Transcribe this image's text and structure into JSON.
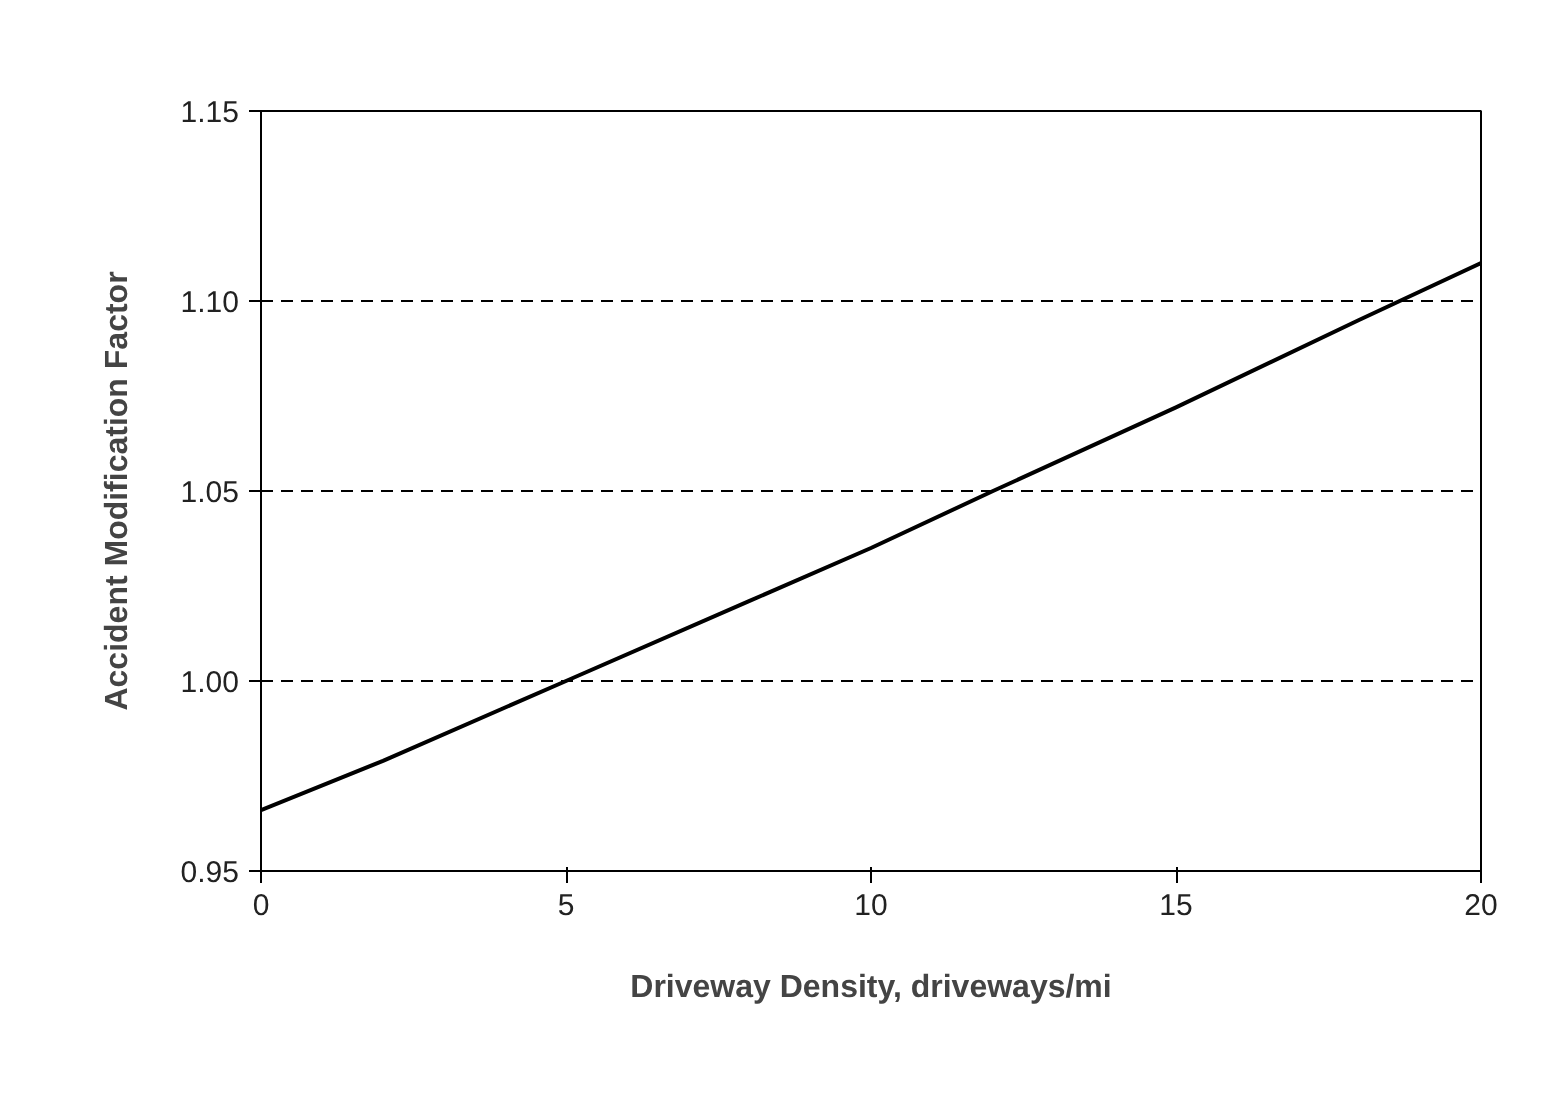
{
  "chart_data": {
    "type": "line",
    "xlabel": "Driveway Density, driveways/mi",
    "ylabel": "Accident Modification Factor",
    "x": [
      0,
      2,
      5,
      8,
      10,
      12,
      15,
      18,
      20
    ],
    "series": [
      {
        "color": "#000000",
        "values": [
          0.966,
          0.979,
          1.0,
          1.021,
          1.035,
          1.05,
          1.072,
          1.095,
          1.11
        ]
      }
    ],
    "xlim": [
      0,
      20
    ],
    "xticks": [
      0,
      5,
      10,
      15,
      20
    ],
    "ylim": [
      0.95,
      1.15
    ],
    "yticks": [
      {
        "value": 0.95,
        "label": "0.95"
      },
      {
        "value": 1.0,
        "label": "1.00"
      },
      {
        "value": 1.05,
        "label": "1.05"
      },
      {
        "value": 1.1,
        "label": "1.10"
      },
      {
        "value": 1.15,
        "label": "1.15"
      }
    ],
    "grid": "y",
    "line_style": "solid",
    "marker": "none"
  }
}
